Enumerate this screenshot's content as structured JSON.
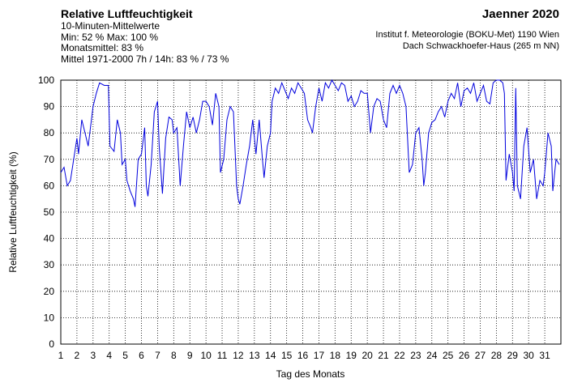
{
  "chart_data": {
    "type": "line",
    "title": "Relative Luftfeuchtigkeit",
    "subtitle": "10-Minuten-Mittelwerte",
    "annotations": [
      "Min:  52 %   Max: 100 %",
      "Monatsmittel:  83 %",
      "Mittel 1971-2000 7h / 14h:  83 % / 73 %"
    ],
    "period": "Jaenner 2020",
    "source": [
      "Institut f. Meteorologie (BOKU-Met) 1190 Wien",
      "Dach Schwackhoefer-Haus (265 m NN)"
    ],
    "xlabel": "Tag des Monats",
    "ylabel": "Relative Luftfeuchtigkeit (%)",
    "color": "#0000dd",
    "grid": true,
    "xlim": [
      1,
      32
    ],
    "ylim": [
      0,
      100
    ],
    "xticks": [
      1,
      2,
      3,
      4,
      5,
      6,
      7,
      8,
      9,
      10,
      11,
      12,
      13,
      14,
      15,
      16,
      17,
      18,
      19,
      20,
      21,
      22,
      23,
      24,
      25,
      26,
      27,
      28,
      29,
      30,
      31
    ],
    "yticks": [
      0,
      10,
      20,
      30,
      40,
      50,
      60,
      70,
      80,
      90,
      100
    ],
    "x": [
      1,
      1.2,
      1.4,
      1.6,
      1.8,
      2,
      2.1,
      2.3,
      2.5,
      2.7,
      2.9,
      3,
      3.2,
      3.4,
      3.7,
      3.95,
      4.05,
      4.3,
      4.5,
      4.7,
      4.8,
      5,
      5.1,
      5.3,
      5.5,
      5.6,
      5.8,
      6,
      6.2,
      6.3,
      6.4,
      6.6,
      6.8,
      7,
      7.1,
      7.3,
      7.5,
      7.7,
      7.9,
      8,
      8.2,
      8.4,
      8.6,
      8.8,
      9,
      9.2,
      9.4,
      9.6,
      9.8,
      10,
      10.2,
      10.4,
      10.6,
      10.8,
      10.9,
      11.1,
      11.3,
      11.5,
      11.7,
      11.9,
      12,
      12.1,
      12.3,
      12.5,
      12.7,
      12.9,
      13.1,
      13.3,
      13.5,
      13.6,
      13.8,
      14,
      14.1,
      14.3,
      14.5,
      14.7,
      14.9,
      15.1,
      15.3,
      15.5,
      15.7,
      15.9,
      16.1,
      16.3,
      16.5,
      16.6,
      16.8,
      17,
      17.2,
      17.4,
      17.6,
      17.8,
      18,
      18.2,
      18.4,
      18.6,
      18.8,
      19,
      19.2,
      19.4,
      19.6,
      19.8,
      20,
      20.2,
      20.4,
      20.6,
      20.8,
      21,
      21.2,
      21.4,
      21.6,
      21.8,
      22,
      22.2,
      22.4,
      22.6,
      22.8,
      23,
      23.2,
      23.4,
      23.5,
      23.6,
      23.8,
      24,
      24.2,
      24.4,
      24.6,
      24.8,
      25,
      25.2,
      25.4,
      25.6,
      25.8,
      26,
      26.2,
      26.4,
      26.6,
      26.8,
      27,
      27.2,
      27.4,
      27.6,
      27.8,
      28,
      28.2,
      28.4,
      28.5,
      28.6,
      28.8,
      29,
      29.1,
      29.2,
      29.3,
      29.5,
      29.7,
      29.9,
      30.1,
      30.3,
      30.5,
      30.7,
      30.9,
      31,
      31.2,
      31.4,
      31.5,
      31.7,
      31.9
    ],
    "values": [
      65,
      67,
      60,
      62,
      70,
      78,
      72,
      85,
      80,
      75,
      85,
      90,
      95,
      99,
      98,
      98,
      75,
      73,
      85,
      80,
      68,
      70,
      62,
      58,
      55,
      52,
      70,
      72,
      82,
      60,
      56,
      68,
      88,
      92,
      75,
      57,
      78,
      86,
      85,
      80,
      82,
      60,
      75,
      88,
      82,
      86,
      80,
      85,
      92,
      92,
      90,
      83,
      95,
      90,
      65,
      70,
      85,
      90,
      88,
      60,
      55,
      53,
      60,
      68,
      75,
      85,
      72,
      85,
      70,
      63,
      75,
      80,
      92,
      97,
      95,
      99,
      96,
      93,
      97,
      95,
      99,
      97,
      95,
      85,
      82,
      80,
      90,
      97,
      92,
      99,
      97,
      100,
      98,
      96,
      99,
      98,
      92,
      94,
      90,
      92,
      96,
      95,
      95,
      80,
      90,
      93,
      92,
      85,
      82,
      95,
      98,
      95,
      98,
      95,
      90,
      65,
      68,
      80,
      82,
      70,
      60,
      65,
      80,
      84,
      85,
      88,
      90,
      86,
      92,
      95,
      93,
      99,
      90,
      96,
      97,
      95,
      99,
      92,
      95,
      98,
      92,
      91,
      99,
      100,
      100,
      99,
      95,
      62,
      72,
      65,
      58,
      97,
      60,
      55,
      75,
      82,
      65,
      70,
      55,
      62,
      60,
      65,
      80,
      75,
      58,
      70,
      68
    ]
  }
}
